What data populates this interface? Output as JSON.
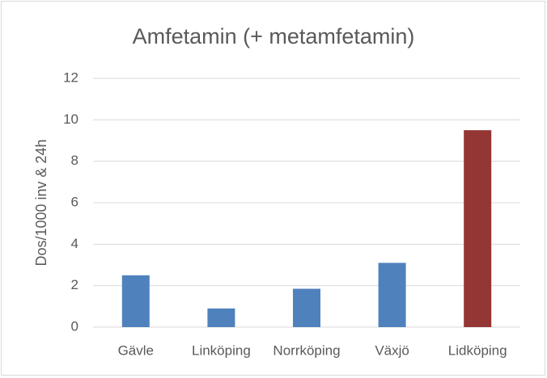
{
  "chart_data": {
    "type": "bar",
    "title": "Amfetamin (+ metamfetamin)",
    "y_label": "Dos/1000 inv & 24h",
    "categories": [
      "Gävle",
      "Linköping",
      "Norrköping",
      "Växjö",
      "Lidköping"
    ],
    "values": [
      2.5,
      0.9,
      1.85,
      3.1,
      9.5
    ],
    "colors": [
      "#4f81bd",
      "#4f81bd",
      "#4f81bd",
      "#4f81bd",
      "#943634"
    ],
    "ylim": [
      0,
      12
    ],
    "yticks": [
      0,
      2,
      4,
      6,
      8,
      10,
      12
    ],
    "grid": true
  }
}
